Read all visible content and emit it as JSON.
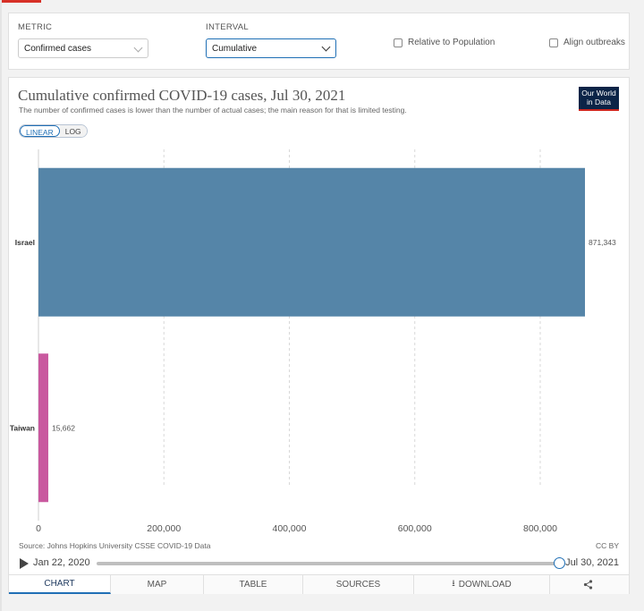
{
  "controls": {
    "metric_label": "METRIC",
    "metric_value": "Confirmed cases",
    "interval_label": "INTERVAL",
    "interval_value": "Cumulative",
    "relative_label": "Relative to Population",
    "align_label": "Align outbreaks"
  },
  "chart": {
    "title": "Cumulative confirmed COVID-19 cases, Jul 30, 2021",
    "subtitle": "The number of confirmed cases is lower than the number of actual cases; the main reason for that is limited testing.",
    "logo_line1": "Our World",
    "logo_line2": "in Data",
    "scale_linear": "LINEAR",
    "scale_log": "LOG",
    "source": "Source: Johns Hopkins University CSSE COVID-19 Data",
    "license": "CC BY"
  },
  "chart_data": {
    "type": "bar",
    "orientation": "horizontal",
    "categories": [
      "Israel",
      "Taiwan"
    ],
    "values": [
      871343,
      15662
    ],
    "value_labels": [
      "871,343",
      "15,662"
    ],
    "colors": [
      "#5585a8",
      "#c9599f"
    ],
    "xlim": [
      0,
      871343
    ],
    "x_ticks": [
      0,
      200000,
      400000,
      600000,
      800000
    ],
    "x_tick_labels": [
      "0",
      "200,000",
      "400,000",
      "600,000",
      "800,000"
    ],
    "grid": true
  },
  "timeline": {
    "start": "Jan 22, 2020",
    "end": "Jul 30, 2021",
    "position": 1.0
  },
  "tabs": [
    {
      "label": "CHART"
    },
    {
      "label": "MAP"
    },
    {
      "label": "TABLE"
    },
    {
      "label": "SOURCES"
    },
    {
      "label": "DOWNLOAD"
    },
    {
      "label": ""
    }
  ]
}
